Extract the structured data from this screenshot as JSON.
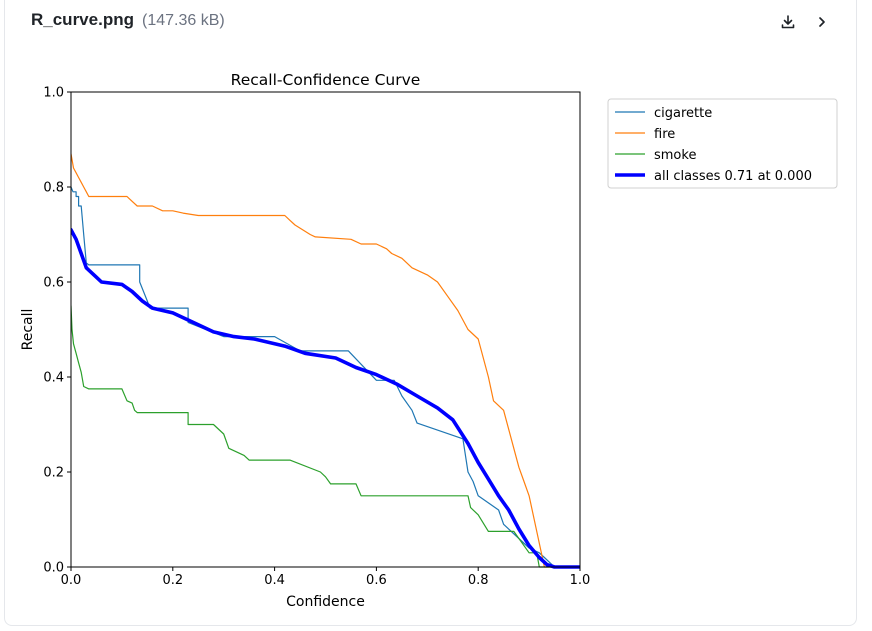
{
  "file": {
    "name": "R_curve.png",
    "size": "(147.36 kB)"
  },
  "actions": {
    "download_icon": "download-icon",
    "next_icon": "chevron-right-icon"
  },
  "colors": {
    "cigarette": "#1f77b4",
    "fire": "#ff7f0e",
    "smoke": "#2ca02c",
    "all": "#0000ff"
  },
  "chart_data": {
    "type": "line",
    "title": "Recall-Confidence Curve",
    "xlabel": "Confidence",
    "ylabel": "Recall",
    "xlim": [
      0,
      1
    ],
    "ylim": [
      0,
      1
    ],
    "xticks": [
      "0.0",
      "0.2",
      "0.4",
      "0.6",
      "0.8",
      "1.0"
    ],
    "yticks": [
      "0.0",
      "0.2",
      "0.4",
      "0.6",
      "0.8",
      "1.0"
    ],
    "grid": false,
    "legend_position": "top-right",
    "series": [
      {
        "name": "cigarette",
        "color": "#1f77b4",
        "x": [
          0.0,
          0.004,
          0.01,
          0.01,
          0.015,
          0.015,
          0.02,
          0.025,
          0.03,
          0.035,
          0.135,
          0.135,
          0.15,
          0.155,
          0.2,
          0.23,
          0.23,
          0.3,
          0.3,
          0.4,
          0.45,
          0.545,
          0.6,
          0.635,
          0.65,
          0.67,
          0.68,
          0.77,
          0.78,
          0.79,
          0.8,
          0.82,
          0.84,
          0.85,
          0.88,
          0.9,
          0.92,
          0.93,
          0.94,
          0.95,
          1.0
        ],
        "y": [
          0.8,
          0.79,
          0.79,
          0.78,
          0.78,
          0.76,
          0.76,
          0.7,
          0.64,
          0.636,
          0.636,
          0.6,
          0.56,
          0.545,
          0.545,
          0.545,
          0.515,
          0.485,
          0.485,
          0.485,
          0.455,
          0.455,
          0.393,
          0.393,
          0.36,
          0.33,
          0.303,
          0.27,
          0.2,
          0.18,
          0.15,
          0.135,
          0.12,
          0.09,
          0.06,
          0.04,
          0.03,
          0.02,
          0.01,
          0.0,
          0.0
        ]
      },
      {
        "name": "fire",
        "color": "#ff7f0e",
        "x": [
          0.0,
          0.005,
          0.01,
          0.015,
          0.02,
          0.025,
          0.03,
          0.035,
          0.11,
          0.12,
          0.13,
          0.16,
          0.18,
          0.2,
          0.22,
          0.25,
          0.42,
          0.43,
          0.44,
          0.47,
          0.48,
          0.55,
          0.57,
          0.6,
          0.62,
          0.63,
          0.65,
          0.67,
          0.7,
          0.72,
          0.74,
          0.76,
          0.77,
          0.78,
          0.8,
          0.81,
          0.82,
          0.83,
          0.85,
          0.87,
          0.88,
          0.89,
          0.9,
          0.91,
          0.92,
          0.93,
          1.0
        ],
        "y": [
          0.87,
          0.84,
          0.83,
          0.82,
          0.81,
          0.8,
          0.79,
          0.78,
          0.78,
          0.77,
          0.76,
          0.76,
          0.75,
          0.75,
          0.745,
          0.74,
          0.74,
          0.73,
          0.72,
          0.7,
          0.695,
          0.69,
          0.68,
          0.68,
          0.67,
          0.66,
          0.65,
          0.63,
          0.615,
          0.6,
          0.57,
          0.54,
          0.52,
          0.5,
          0.48,
          0.44,
          0.4,
          0.35,
          0.33,
          0.25,
          0.21,
          0.18,
          0.15,
          0.1,
          0.05,
          0.0,
          0.0
        ]
      },
      {
        "name": "smoke",
        "color": "#2ca02c",
        "x": [
          0.0,
          0.002,
          0.005,
          0.01,
          0.015,
          0.02,
          0.025,
          0.035,
          0.1,
          0.11,
          0.12,
          0.125,
          0.13,
          0.23,
          0.23,
          0.28,
          0.3,
          0.31,
          0.34,
          0.35,
          0.43,
          0.49,
          0.5,
          0.51,
          0.56,
          0.57,
          0.78,
          0.785,
          0.8,
          0.82,
          0.87,
          0.9,
          0.915,
          0.92,
          1.0
        ],
        "y": [
          0.55,
          0.5,
          0.47,
          0.45,
          0.43,
          0.41,
          0.38,
          0.375,
          0.375,
          0.35,
          0.345,
          0.33,
          0.325,
          0.325,
          0.3,
          0.3,
          0.28,
          0.25,
          0.235,
          0.225,
          0.225,
          0.2,
          0.19,
          0.175,
          0.175,
          0.15,
          0.15,
          0.125,
          0.11,
          0.075,
          0.075,
          0.03,
          0.03,
          0.0,
          0.0
        ]
      },
      {
        "name": "all classes 0.71 at 0.000",
        "color": "#0000ff",
        "x": [
          0.0,
          0.01,
          0.02,
          0.03,
          0.05,
          0.06,
          0.1,
          0.12,
          0.14,
          0.16,
          0.18,
          0.2,
          0.22,
          0.24,
          0.28,
          0.32,
          0.36,
          0.42,
          0.46,
          0.52,
          0.56,
          0.6,
          0.64,
          0.68,
          0.72,
          0.75,
          0.78,
          0.8,
          0.82,
          0.84,
          0.86,
          0.88,
          0.9,
          0.92,
          0.935,
          0.95,
          1.0
        ],
        "y": [
          0.71,
          0.69,
          0.66,
          0.63,
          0.61,
          0.6,
          0.595,
          0.58,
          0.56,
          0.545,
          0.54,
          0.535,
          0.525,
          0.515,
          0.495,
          0.485,
          0.48,
          0.465,
          0.45,
          0.44,
          0.42,
          0.405,
          0.385,
          0.36,
          0.335,
          0.31,
          0.26,
          0.22,
          0.185,
          0.15,
          0.12,
          0.08,
          0.045,
          0.02,
          0.005,
          0.0,
          0.0
        ]
      }
    ],
    "legend": [
      "cigarette",
      "fire",
      "smoke",
      "all classes 0.71 at 0.000"
    ]
  }
}
